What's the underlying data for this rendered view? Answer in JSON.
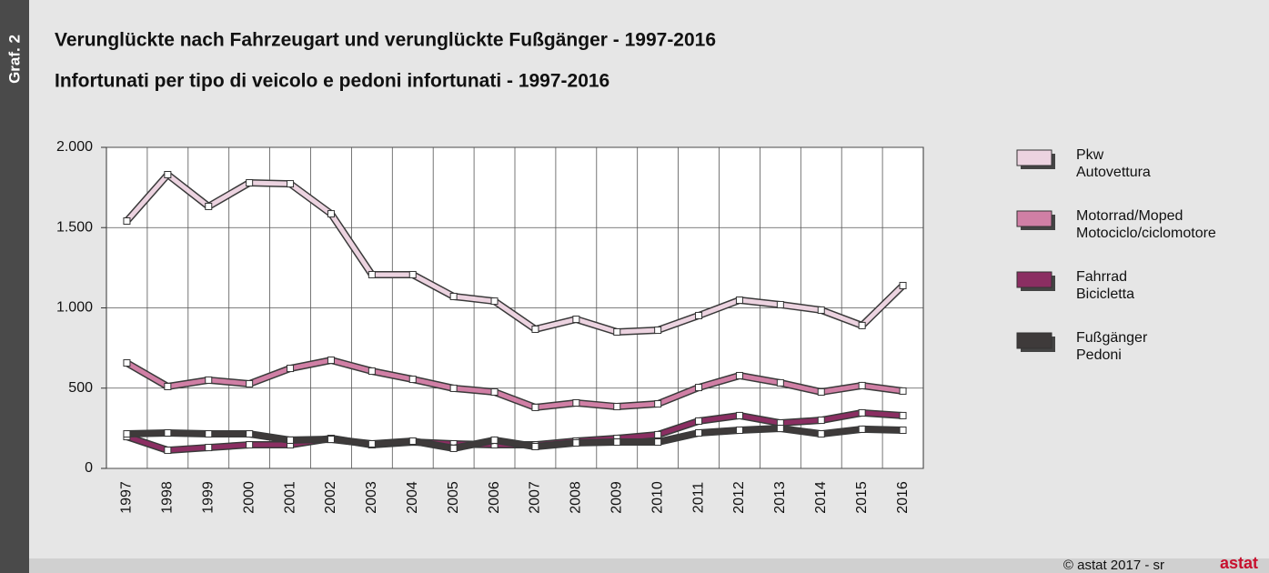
{
  "chart_data": {
    "type": "line",
    "graphic_label": "Graf. 2",
    "title": "Verunglückte nach Fahrzeugart und verunglückte Fußgänger - 1997-2016",
    "subtitle": "Infortunati per tipo di veicolo e pedoni infortunati - 1997-2016",
    "categories": [
      "1997",
      "1998",
      "1999",
      "2000",
      "2001",
      "2002",
      "2003",
      "2004",
      "2005",
      "2006",
      "2007",
      "2008",
      "2009",
      "2010",
      "2011",
      "2012",
      "2013",
      "2014",
      "2015",
      "2016"
    ],
    "series": [
      {
        "name": "Pkw\nAutovettura",
        "color": "#ecd3e0",
        "values": [
          1541,
          1830,
          1632,
          1779,
          1773,
          1586,
          1207,
          1207,
          1071,
          1042,
          867,
          929,
          850,
          861,
          952,
          1048,
          1020,
          986,
          890,
          1139
        ]
      },
      {
        "name": "Motorrad/Moped\nMotociclo/ciclomotore",
        "color": "#d07fa5",
        "values": [
          657,
          510,
          550,
          527,
          623,
          674,
          606,
          555,
          499,
          476,
          380,
          408,
          385,
          402,
          504,
          578,
          533,
          476,
          516,
          482
        ]
      },
      {
        "name": "Fahrrad\nBicicletta",
        "color": "#8b2e62",
        "values": [
          198,
          113,
          130,
          147,
          147,
          187,
          147,
          164,
          153,
          147,
          147,
          170,
          187,
          210,
          295,
          329,
          283,
          300,
          346,
          329
        ]
      },
      {
        "name": "Fußgänger\nPedoni",
        "color": "#3e3a3a",
        "values": [
          215,
          221,
          215,
          215,
          176,
          181,
          153,
          170,
          125,
          176,
          136,
          159,
          164,
          164,
          221,
          238,
          249,
          215,
          244,
          238
        ]
      }
    ],
    "ylim": [
      0,
      2000
    ],
    "yticks": [
      0,
      500,
      {
        "value": 1000,
        "label": "1.000"
      },
      {
        "value": 1500,
        "label": "1.500"
      },
      {
        "value": 2000,
        "label": "2.000"
      }
    ],
    "grid": true,
    "legend": "right",
    "source": "© astat 2017 - sr",
    "logo": "astat"
  }
}
